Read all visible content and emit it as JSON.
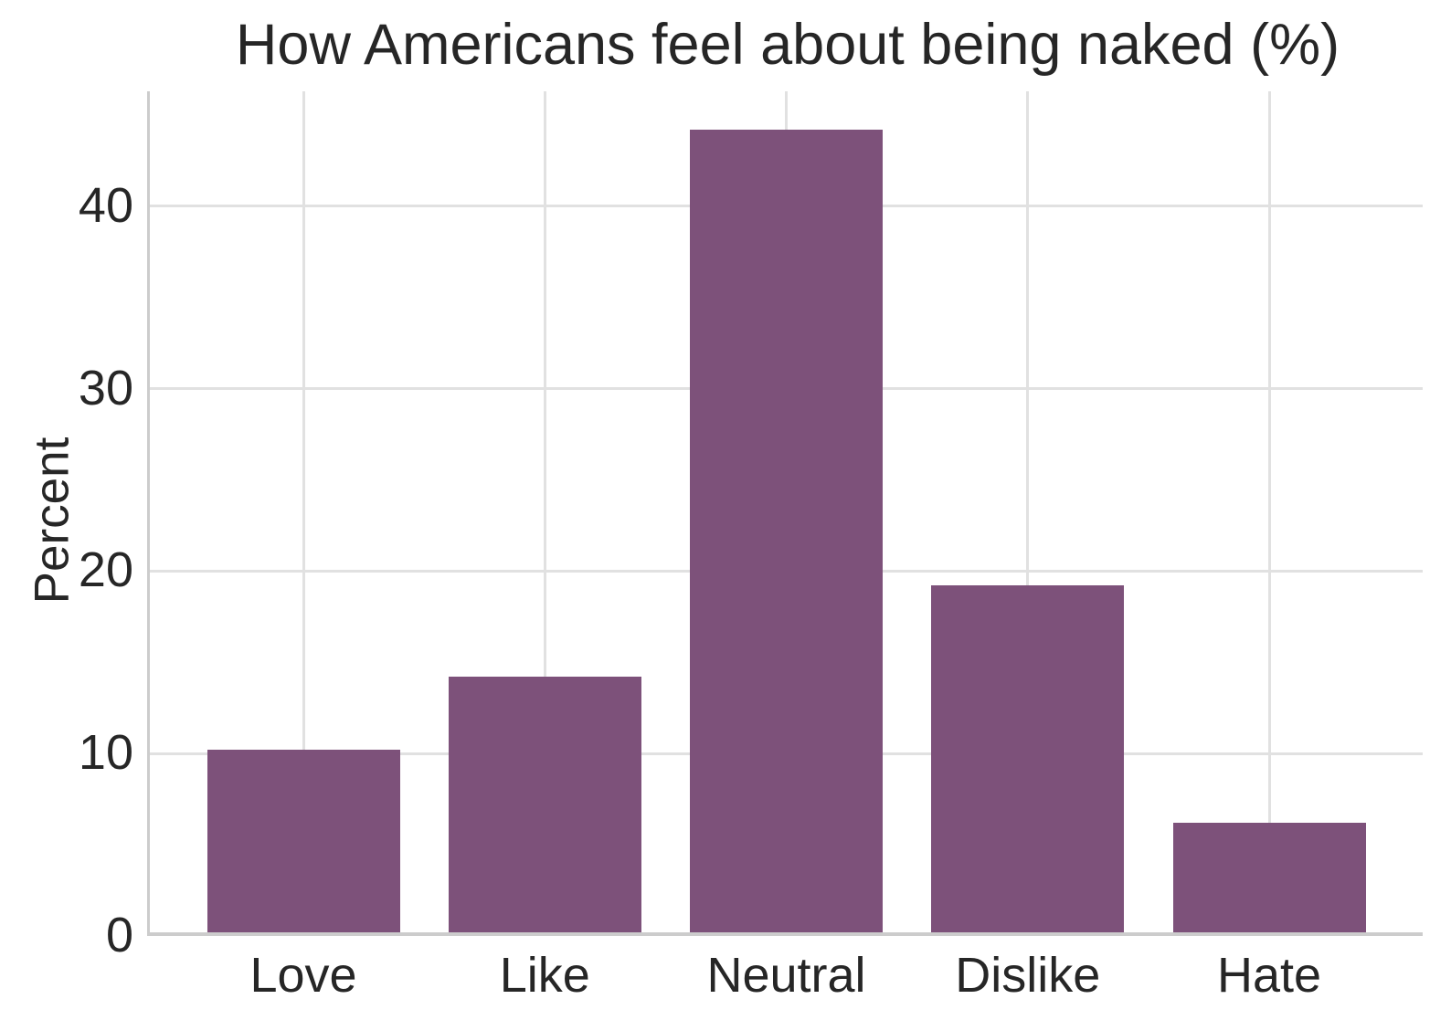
{
  "title": "How Americans feel about being naked (%)",
  "colors": {
    "bar": "#7d517a",
    "grid": "#e1e1e1",
    "spine": "#cccccc",
    "text": "#262626",
    "background": "#ffffff"
  },
  "chart_data": {
    "type": "bar",
    "title": "How Americans feel about being naked (%)",
    "categories": [
      "Love",
      "Like",
      "Neutral",
      "Dislike",
      "Hate"
    ],
    "values": [
      10,
      14,
      44,
      19,
      6
    ],
    "xlabel": "",
    "ylabel": "Percent",
    "ylim": [
      0,
      46.3
    ],
    "yticks": [
      0,
      10,
      20,
      30,
      40
    ],
    "grid": true,
    "vertical_gridlines": true,
    "legend": null,
    "bar_color": "#7d517a"
  }
}
